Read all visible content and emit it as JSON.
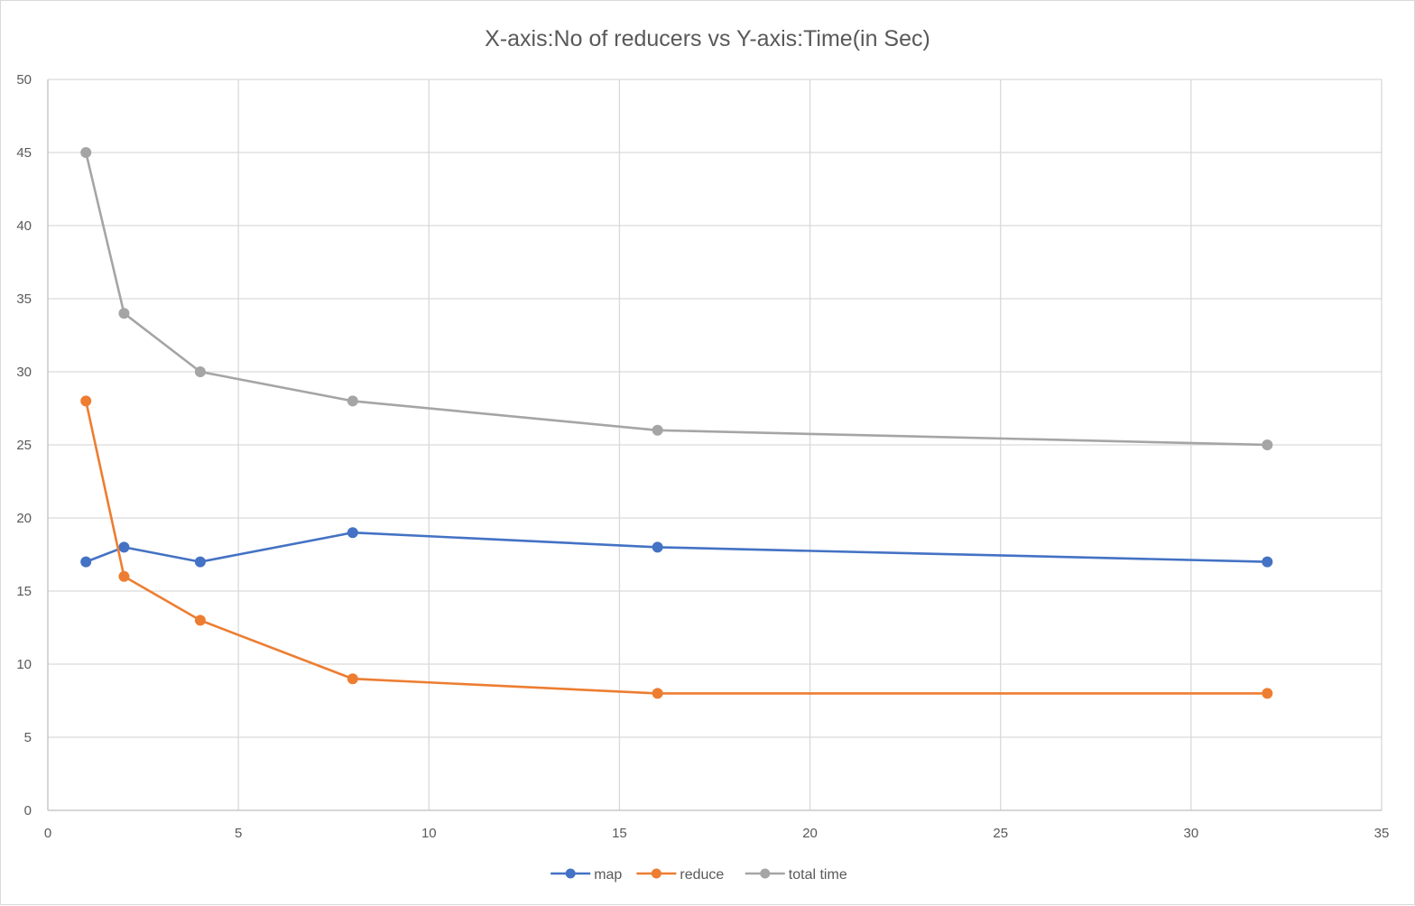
{
  "chart_data": {
    "type": "scatter",
    "title": "X-axis:No of reducers vs Y-axis:Time(in Sec)",
    "xlabel": "",
    "ylabel": "",
    "xlim": [
      0,
      35
    ],
    "ylim": [
      0,
      50
    ],
    "x_ticks": [
      0,
      5,
      10,
      15,
      20,
      25,
      30,
      35
    ],
    "y_ticks": [
      0,
      5,
      10,
      15,
      20,
      25,
      30,
      35,
      40,
      45,
      50
    ],
    "grid": true,
    "legend_position": "bottom",
    "x": [
      1,
      2,
      4,
      8,
      16,
      32
    ],
    "series": [
      {
        "name": "map",
        "color": "#4472C4",
        "values": [
          17,
          18,
          17,
          19,
          18,
          17
        ]
      },
      {
        "name": "reduce",
        "color": "#ED7D31",
        "values": [
          28,
          16,
          13,
          9,
          8,
          8
        ]
      },
      {
        "name": "total time",
        "color": "#A5A5A5",
        "values": [
          45,
          34,
          30,
          28,
          26,
          25
        ]
      }
    ]
  }
}
